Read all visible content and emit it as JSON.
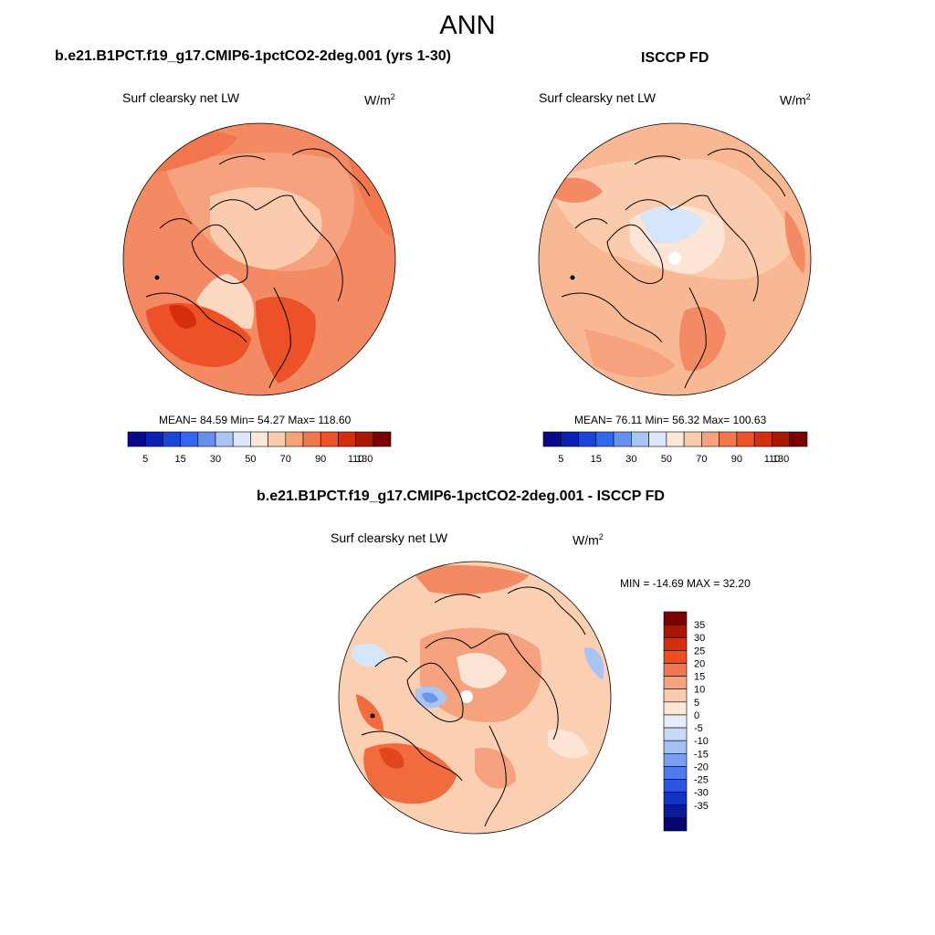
{
  "season": "ANN",
  "panels": [
    {
      "title": "b.e21.B1PCT.f19_g17.CMIP6-1pctCO2-2deg.001 (yrs 1-30)",
      "left_label": "Surf clearsky net LW",
      "units_base": "W/m",
      "units_sup": "2",
      "stats": "MEAN=  84.59  Min=  54.27  Max= 118.60"
    },
    {
      "title": "ISCCP FD",
      "left_label": "Surf clearsky net LW",
      "units_base": "W/m",
      "units_sup": "2",
      "stats": "MEAN=  76.11  Min=  56.32  Max= 100.63"
    },
    {
      "title": "b.e21.B1PCT.f19_g17.CMIP6-1pctCO2-2deg.001 - ISCCP FD",
      "left_label": "Surf clearsky net LW",
      "units_base": "W/m",
      "units_sup": "2",
      "stats": "MIN = -14.69 MAX =  32.20"
    }
  ],
  "colorbar_horizontal": {
    "colors": [
      "#08088a",
      "#0a21b5",
      "#1a45d8",
      "#3366ee",
      "#6690f0",
      "#a9c4f5",
      "#dbe8fb",
      "#fde7d7",
      "#fbcbae",
      "#f7a27e",
      "#f2774f",
      "#ec5128",
      "#d42e0e",
      "#a81703",
      "#7a0000"
    ],
    "tick_labels": [
      "5",
      "15",
      "30",
      "50",
      "70",
      "90",
      "110",
      "130"
    ]
  },
  "colorbar_vertical": {
    "colors": [
      "#7a0000",
      "#a81703",
      "#d42e0e",
      "#ee4d1d",
      "#f2774f",
      "#f7a27e",
      "#fbcbae",
      "#fde7d7",
      "#e6eefa",
      "#c8daf7",
      "#a4c0f3",
      "#7a9ff0",
      "#4f7aec",
      "#2a55e0",
      "#1233c0",
      "#0a1b95",
      "#06066e"
    ],
    "tick_labels": [
      "35",
      "30",
      "25",
      "20",
      "15",
      "10",
      "5",
      "0",
      "-5",
      "-10",
      "-15",
      "-20",
      "-25",
      "-30",
      "-35"
    ]
  },
  "map_palette": {
    "base_model": "#f48a63",
    "base_obs": "#f9b894",
    "base_diff": "#fbcfb2",
    "pole_light": "#fbd3bd",
    "deep": "#e3451d",
    "mid": "#f06b3e",
    "light": "#fde5d5",
    "cool": "#d6e6fa",
    "cool2": "#a9c4f3",
    "cool3": "#6e94e8"
  }
}
